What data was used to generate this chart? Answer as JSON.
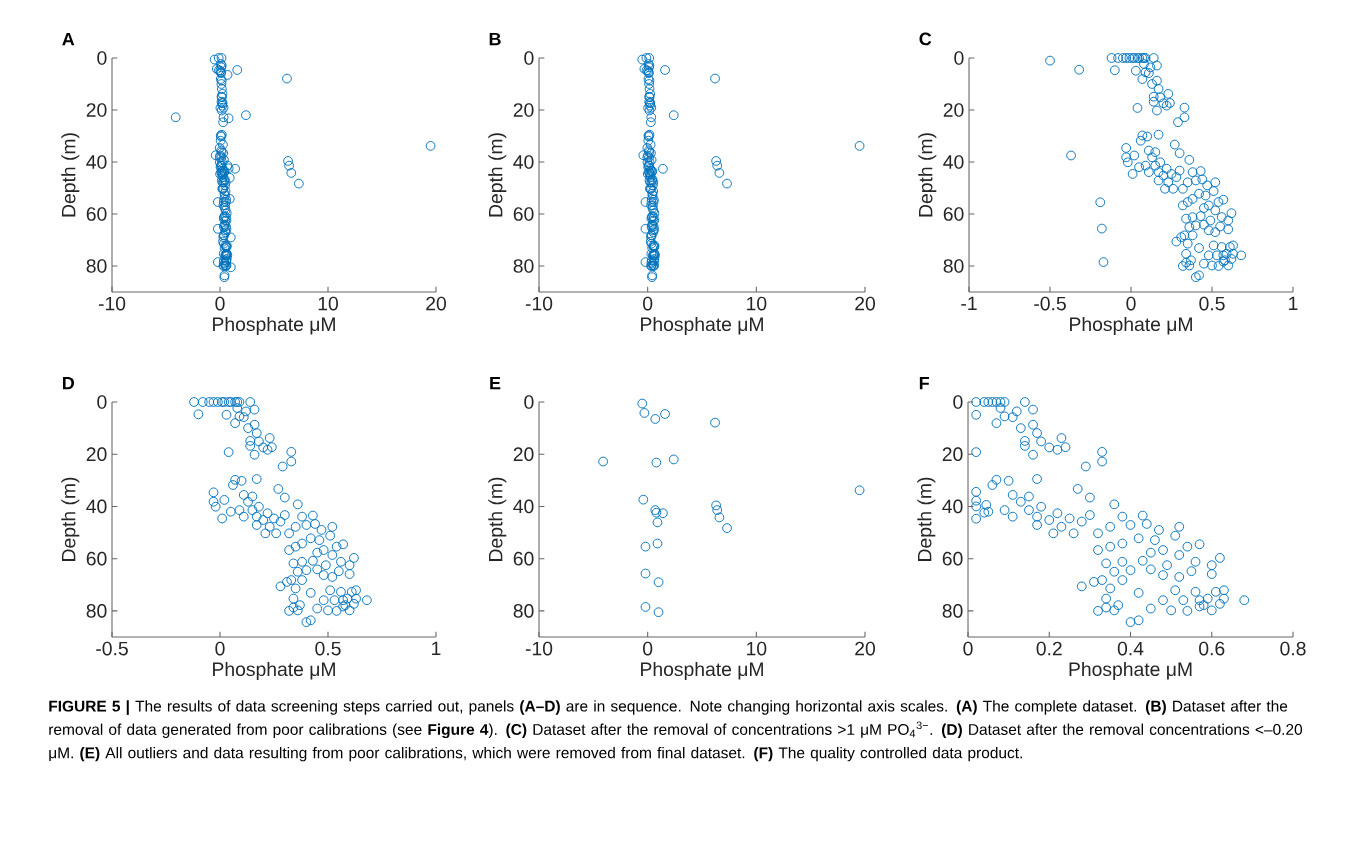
{
  "chart_data": [
    {
      "type": "scatter",
      "title": "A",
      "xlabel": "Phosphate μM",
      "ylabel": "Depth (m)",
      "color": "#0072bd",
      "marker": "circle",
      "xlim": [
        -10,
        20
      ],
      "ylim": [
        90,
        0
      ],
      "xticks": [
        -10,
        0,
        10,
        20
      ],
      "yticks": [
        0,
        20,
        40,
        60,
        80
      ],
      "x": [
        -0.12,
        0.14,
        -0.1,
        0.03,
        0.04,
        -0.03,
        -0.03,
        -0.02,
        0.02,
        0.01,
        0.16,
        0.08,
        0.09,
        0.12,
        0.07,
        0.11,
        0.13,
        0.16,
        0.17,
        0.14,
        0.14,
        0.18,
        0.16,
        0.2,
        0.23,
        0.22,
        0.24,
        0.33,
        0.33,
        0.29,
        0.17,
        0.07,
        0.1,
        0.06,
        0.05,
        0.11,
        0.13,
        0.15,
        0.27,
        0.3,
        0.36,
        0.09,
        0.11,
        0.15,
        0.17,
        0.18,
        0.2,
        0.22,
        0.23,
        0.25,
        0.28,
        0.3,
        0.17,
        0.21,
        0.26,
        0.32,
        0.35,
        0.38,
        0.43,
        0.4,
        0.44,
        0.47,
        0.52,
        0.51,
        0.46,
        0.42,
        0.38,
        0.57,
        0.54,
        0.48,
        0.45,
        0.35,
        0.32,
        0.34,
        0.38,
        0.43,
        0.52,
        0.56,
        0.62,
        0.6,
        0.6,
        0.55,
        0.52,
        0.48,
        0.49,
        0.45,
        0.4,
        0.36,
        0.33,
        0.28,
        0.31,
        0.38,
        0.42,
        0.35,
        0.34,
        0.32,
        0.34,
        0.36,
        0.37,
        0.4,
        0.42,
        0.45,
        0.48,
        0.5,
        0.51,
        0.53,
        0.54,
        0.56,
        0.57,
        0.58,
        0.59,
        0.6,
        0.61,
        0.62,
        0.63,
        0.63,
        0.68,
        0.57,
        -0.5,
        -0.3,
        1.6,
        0.7,
        6.2,
        -4.1,
        0.8,
        2.4,
        19.5,
        -0.4,
        6.3,
        6.4,
        6.6,
        7.3,
        0.7,
        0.8,
        1.4,
        0.9,
        0.9,
        -0.2,
        -0.2,
        1,
        -0.2,
        1
      ],
      "values": [
        0,
        0,
        4.7,
        4.9,
        19.2,
        34.6,
        38.2,
        40.1,
        37.5,
        44.6,
        2.9,
        2.3,
        5.5,
        3.6,
        8.1,
        5.8,
        10,
        8.7,
        11.9,
        14.9,
        16.8,
        15.1,
        20.2,
        17.4,
        13.8,
        18.3,
        17.3,
        19.1,
        22.8,
        24.7,
        29.5,
        29.8,
        30.2,
        31.8,
        42,
        35.6,
        38.2,
        36.2,
        33.3,
        36.6,
        39.2,
        41.4,
        43.9,
        41.4,
        43.9,
        40.1,
        45.2,
        42.6,
        47.8,
        44.6,
        45.8,
        43.3,
        47.1,
        50.3,
        50.3,
        50.3,
        47.8,
        43.9,
        43.5,
        47.1,
        46.7,
        49,
        47.8,
        51.2,
        52.9,
        52.2,
        54.2,
        54.5,
        55.4,
        56.7,
        57.7,
        55.4,
        56.7,
        61.8,
        61.2,
        60.8,
        58.6,
        61.2,
        59.7,
        62.5,
        65.9,
        64.8,
        67,
        66.3,
        62.5,
        64.1,
        64.4,
        65,
        68.2,
        70.6,
        68.9,
        68.2,
        73.1,
        71.4,
        75.3,
        80,
        78.7,
        79.8,
        77.8,
        84.3,
        83.6,
        79.1,
        75.9,
        79.8,
        72.1,
        75.9,
        80,
        72.7,
        75.9,
        77.8,
        75.3,
        79.8,
        72.7,
        77.3,
        72.1,
        75.3,
        75.9,
        78.3,
        0.6,
        4.2,
        4.6,
        6.5,
        7.9,
        22.8,
        23.2,
        22,
        33.8,
        37.4,
        39.6,
        41.4,
        44.2,
        48.3,
        41.4,
        42.4,
        42.6,
        46.1,
        54.2,
        55.4,
        65.7,
        69,
        78.5,
        80.5
      ]
    },
    {
      "type": "scatter",
      "title": "B",
      "xlabel": "Phosphate μM",
      "ylabel": "Depth (m)",
      "color": "#0072bd",
      "marker": "circle",
      "xlim": [
        -10,
        20
      ],
      "ylim": [
        90,
        0
      ],
      "xticks": [
        -10,
        0,
        10,
        20
      ],
      "yticks": [
        0,
        20,
        40,
        60,
        80
      ],
      "x": [
        -0.12,
        0.14,
        -0.1,
        0.03,
        0.04,
        -0.03,
        -0.03,
        -0.02,
        0.02,
        0.01,
        0.16,
        0.08,
        0.09,
        0.12,
        0.07,
        0.11,
        0.13,
        0.16,
        0.17,
        0.14,
        0.14,
        0.18,
        0.16,
        0.2,
        0.23,
        0.22,
        0.24,
        0.33,
        0.33,
        0.29,
        0.17,
        0.07,
        0.1,
        0.06,
        0.05,
        0.11,
        0.13,
        0.15,
        0.27,
        0.3,
        0.36,
        0.09,
        0.11,
        0.15,
        0.17,
        0.18,
        0.2,
        0.22,
        0.23,
        0.25,
        0.28,
        0.3,
        0.17,
        0.21,
        0.26,
        0.32,
        0.35,
        0.38,
        0.43,
        0.4,
        0.44,
        0.47,
        0.52,
        0.51,
        0.46,
        0.42,
        0.38,
        0.57,
        0.54,
        0.48,
        0.45,
        0.35,
        0.32,
        0.34,
        0.38,
        0.43,
        0.52,
        0.56,
        0.62,
        0.6,
        0.6,
        0.55,
        0.52,
        0.48,
        0.49,
        0.45,
        0.4,
        0.36,
        0.33,
        0.28,
        0.31,
        0.38,
        0.42,
        0.35,
        0.34,
        0.32,
        0.34,
        0.36,
        0.37,
        0.4,
        0.42,
        0.45,
        0.48,
        0.5,
        0.51,
        0.53,
        0.54,
        0.56,
        0.57,
        0.58,
        0.59,
        0.6,
        0.61,
        0.62,
        0.63,
        0.63,
        0.68,
        0.57,
        -0.5,
        -0.3,
        1.6,
        6.2,
        2.4,
        19.5,
        -0.4,
        6.3,
        6.4,
        6.6,
        7.3,
        1.4,
        -0.2,
        -0.2,
        -0.2
      ],
      "values": [
        0,
        0,
        4.7,
        4.9,
        19.2,
        34.6,
        38.2,
        40.1,
        37.5,
        44.6,
        2.9,
        2.3,
        5.5,
        3.6,
        8.1,
        5.8,
        10,
        8.7,
        11.9,
        14.9,
        16.8,
        15.1,
        20.2,
        17.4,
        13.8,
        18.3,
        17.3,
        19.1,
        22.8,
        24.7,
        29.5,
        29.8,
        30.2,
        31.8,
        42,
        35.6,
        38.2,
        36.2,
        33.3,
        36.6,
        39.2,
        41.4,
        43.9,
        41.4,
        43.9,
        40.1,
        45.2,
        42.6,
        47.8,
        44.6,
        45.8,
        43.3,
        47.1,
        50.3,
        50.3,
        50.3,
        47.8,
        43.9,
        43.5,
        47.1,
        46.7,
        49,
        47.8,
        51.2,
        52.9,
        52.2,
        54.2,
        54.5,
        55.4,
        56.7,
        57.7,
        55.4,
        56.7,
        61.8,
        61.2,
        60.8,
        58.6,
        61.2,
        59.7,
        62.5,
        65.9,
        64.8,
        67,
        66.3,
        62.5,
        64.1,
        64.4,
        65,
        68.2,
        70.6,
        68.9,
        68.2,
        73.1,
        71.4,
        75.3,
        80,
        78.7,
        79.8,
        77.8,
        84.3,
        83.6,
        79.1,
        75.9,
        79.8,
        72.1,
        75.9,
        80,
        72.7,
        75.9,
        77.8,
        75.3,
        79.8,
        72.7,
        77.3,
        72.1,
        75.3,
        75.9,
        78.3,
        0.6,
        4.2,
        4.6,
        7.9,
        22,
        33.8,
        37.4,
        39.6,
        41.4,
        44.2,
        48.3,
        42.6,
        55.4,
        65.7,
        78.5
      ]
    },
    {
      "type": "scatter",
      "title": "C",
      "xlabel": "Phosphate μM",
      "ylabel": "Depth (m)",
      "color": "#0072bd",
      "marker": "circle",
      "xlim": [
        -1,
        1
      ],
      "ylim": [
        90,
        0
      ],
      "xticks": [
        -1,
        -0.5,
        0,
        0.5,
        1
      ],
      "yticks": [
        0,
        20,
        40,
        60,
        80
      ],
      "x": [
        -0.5,
        -0.32,
        -0.37,
        -0.19,
        -0.18,
        -0.17,
        -0.12,
        -0.08,
        -0.05,
        -0.03,
        -0.01,
        0.01,
        0.02,
        0.04,
        0.05,
        0.07,
        0.08,
        0.09,
        0.14,
        -0.1,
        0.03,
        0.04,
        -0.03,
        -0.03,
        -0.02,
        0.02,
        0.01,
        0.16,
        0.08,
        0.09,
        0.12,
        0.07,
        0.11,
        0.13,
        0.16,
        0.17,
        0.14,
        0.14,
        0.18,
        0.16,
        0.2,
        0.23,
        0.22,
        0.24,
        0.33,
        0.33,
        0.29,
        0.17,
        0.07,
        0.1,
        0.06,
        0.05,
        0.11,
        0.13,
        0.15,
        0.27,
        0.3,
        0.36,
        0.09,
        0.11,
        0.15,
        0.17,
        0.18,
        0.2,
        0.22,
        0.23,
        0.25,
        0.28,
        0.3,
        0.17,
        0.21,
        0.26,
        0.32,
        0.35,
        0.38,
        0.43,
        0.4,
        0.44,
        0.47,
        0.52,
        0.51,
        0.46,
        0.42,
        0.38,
        0.57,
        0.54,
        0.48,
        0.45,
        0.35,
        0.32,
        0.34,
        0.38,
        0.43,
        0.52,
        0.56,
        0.62,
        0.6,
        0.6,
        0.55,
        0.52,
        0.48,
        0.49,
        0.45,
        0.4,
        0.36,
        0.33,
        0.28,
        0.31,
        0.38,
        0.42,
        0.35,
        0.34,
        0.32,
        0.34,
        0.36,
        0.37,
        0.4,
        0.42,
        0.45,
        0.48,
        0.5,
        0.51,
        0.53,
        0.54,
        0.56,
        0.57,
        0.58,
        0.59,
        0.6,
        0.61,
        0.62,
        0.63,
        0.63,
        0.68,
        0.57
      ],
      "values": [
        1,
        4.5,
        37.5,
        55.5,
        65.6,
        78.5,
        0,
        0,
        0,
        0,
        0,
        0,
        0,
        0,
        0,
        0,
        0,
        0,
        0,
        4.7,
        4.9,
        19.2,
        34.6,
        38.2,
        40.1,
        37.5,
        44.6,
        2.9,
        2.3,
        5.5,
        3.6,
        8.1,
        5.8,
        10,
        8.7,
        11.9,
        14.9,
        16.8,
        15.1,
        20.2,
        17.4,
        13.8,
        18.3,
        17.3,
        19.1,
        22.8,
        24.7,
        29.5,
        29.8,
        30.2,
        31.8,
        42,
        35.6,
        38.2,
        36.2,
        33.3,
        36.6,
        39.2,
        41.4,
        43.9,
        41.4,
        43.9,
        40.1,
        45.2,
        42.6,
        47.8,
        44.6,
        45.8,
        43.3,
        47.1,
        50.3,
        50.3,
        50.3,
        47.8,
        43.9,
        43.5,
        47.1,
        46.7,
        49,
        47.8,
        51.2,
        52.9,
        52.2,
        54.2,
        54.5,
        55.4,
        56.7,
        57.7,
        55.4,
        56.7,
        61.8,
        61.2,
        60.8,
        58.6,
        61.2,
        59.7,
        62.5,
        65.9,
        64.8,
        67,
        66.3,
        62.5,
        64.1,
        64.4,
        65,
        68.2,
        70.6,
        68.9,
        68.2,
        73.1,
        71.4,
        75.3,
        80,
        78.7,
        79.8,
        77.8,
        84.3,
        83.6,
        79.1,
        75.9,
        79.8,
        72.1,
        75.9,
        80,
        72.7,
        75.9,
        77.8,
        75.3,
        79.8,
        72.7,
        77.3,
        72.1,
        75.3,
        75.9,
        78.3
      ]
    },
    {
      "type": "scatter",
      "title": "D",
      "xlabel": "Phosphate μM",
      "ylabel": "Depth (m)",
      "color": "#0072bd",
      "marker": "circle",
      "xlim": [
        -0.5,
        1
      ],
      "ylim": [
        90,
        0
      ],
      "xticks": [
        -0.5,
        0,
        0.5,
        1
      ],
      "yticks": [
        0,
        20,
        40,
        60,
        80
      ],
      "x": [
        -0.12,
        -0.08,
        -0.05,
        -0.03,
        -0.01,
        0.01,
        0.02,
        0.04,
        0.05,
        0.07,
        0.08,
        0.09,
        0.14,
        -0.1,
        0.03,
        0.04,
        -0.03,
        -0.03,
        -0.02,
        0.02,
        0.01,
        0.16,
        0.08,
        0.09,
        0.12,
        0.07,
        0.11,
        0.13,
        0.16,
        0.17,
        0.14,
        0.14,
        0.18,
        0.16,
        0.2,
        0.23,
        0.22,
        0.24,
        0.33,
        0.33,
        0.29,
        0.17,
        0.07,
        0.1,
        0.06,
        0.05,
        0.11,
        0.13,
        0.15,
        0.27,
        0.3,
        0.36,
        0.09,
        0.11,
        0.15,
        0.17,
        0.18,
        0.2,
        0.22,
        0.23,
        0.25,
        0.28,
        0.3,
        0.17,
        0.21,
        0.26,
        0.32,
        0.35,
        0.38,
        0.43,
        0.4,
        0.44,
        0.47,
        0.52,
        0.51,
        0.46,
        0.42,
        0.38,
        0.57,
        0.54,
        0.48,
        0.45,
        0.35,
        0.32,
        0.34,
        0.38,
        0.43,
        0.52,
        0.56,
        0.62,
        0.6,
        0.6,
        0.55,
        0.52,
        0.48,
        0.49,
        0.45,
        0.4,
        0.36,
        0.33,
        0.28,
        0.31,
        0.38,
        0.42,
        0.35,
        0.34,
        0.32,
        0.34,
        0.36,
        0.37,
        0.4,
        0.42,
        0.45,
        0.48,
        0.5,
        0.51,
        0.53,
        0.54,
        0.56,
        0.57,
        0.58,
        0.59,
        0.6,
        0.61,
        0.62,
        0.63,
        0.63,
        0.68,
        0.57
      ],
      "values": [
        0,
        0,
        0,
        0,
        0,
        0,
        0,
        0,
        0,
        0,
        0,
        0,
        0,
        4.7,
        4.9,
        19.2,
        34.6,
        38.2,
        40.1,
        37.5,
        44.6,
        2.9,
        2.3,
        5.5,
        3.6,
        8.1,
        5.8,
        10,
        8.7,
        11.9,
        14.9,
        16.8,
        15.1,
        20.2,
        17.4,
        13.8,
        18.3,
        17.3,
        19.1,
        22.8,
        24.7,
        29.5,
        29.8,
        30.2,
        31.8,
        42,
        35.6,
        38.2,
        36.2,
        33.3,
        36.6,
        39.2,
        41.4,
        43.9,
        41.4,
        43.9,
        40.1,
        45.2,
        42.6,
        47.8,
        44.6,
        45.8,
        43.3,
        47.1,
        50.3,
        50.3,
        50.3,
        47.8,
        43.9,
        43.5,
        47.1,
        46.7,
        49,
        47.8,
        51.2,
        52.9,
        52.2,
        54.2,
        54.5,
        55.4,
        56.7,
        57.7,
        55.4,
        56.7,
        61.8,
        61.2,
        60.8,
        58.6,
        61.2,
        59.7,
        62.5,
        65.9,
        64.8,
        67,
        66.3,
        62.5,
        64.1,
        64.4,
        65,
        68.2,
        70.6,
        68.9,
        68.2,
        73.1,
        71.4,
        75.3,
        80,
        78.7,
        79.8,
        77.8,
        84.3,
        83.6,
        79.1,
        75.9,
        79.8,
        72.1,
        75.9,
        80,
        72.7,
        75.9,
        77.8,
        75.3,
        79.8,
        72.7,
        77.3,
        72.1,
        75.3,
        75.9,
        78.3
      ]
    },
    {
      "type": "scatter",
      "title": "E",
      "xlabel": "Phosphate μM",
      "ylabel": "Depth (m)",
      "color": "#0072bd",
      "marker": "circle",
      "xlim": [
        -10,
        20
      ],
      "ylim": [
        90,
        0
      ],
      "xticks": [
        -10,
        0,
        10,
        20
      ],
      "yticks": [
        0,
        20,
        40,
        60,
        80
      ],
      "x": [
        -0.5,
        -0.3,
        1.6,
        0.7,
        6.2,
        -4.1,
        0.8,
        2.4,
        19.5,
        -0.4,
        6.3,
        6.4,
        6.6,
        7.3,
        0.7,
        0.8,
        1.4,
        0.9,
        0.9,
        -0.2,
        -0.2,
        1,
        -0.2,
        1
      ],
      "values": [
        0.6,
        4.2,
        4.6,
        6.5,
        7.9,
        22.8,
        23.2,
        22,
        33.8,
        37.4,
        39.6,
        41.4,
        44.2,
        48.3,
        41.4,
        42.4,
        42.6,
        46.1,
        54.2,
        55.4,
        65.7,
        69,
        78.5,
        80.5
      ]
    },
    {
      "type": "scatter",
      "title": "F",
      "xlabel": "Phosphate μM",
      "ylabel": "Depth (m)",
      "color": "#0072bd",
      "marker": "circle",
      "xlim": [
        0,
        0.8
      ],
      "ylim": [
        90,
        0
      ],
      "xticks": [
        0,
        0.2,
        0.4,
        0.6,
        0.8
      ],
      "yticks": [
        0,
        20,
        40,
        60,
        80
      ],
      "x": [
        0.02,
        0.04,
        0.05,
        0.06,
        0.07,
        0.08,
        0.09,
        0.14,
        0.02,
        0.02,
        0.02,
        0.02,
        0.02,
        0.02,
        0.045,
        0.04,
        0.16,
        0.08,
        0.09,
        0.12,
        0.07,
        0.11,
        0.13,
        0.16,
        0.17,
        0.14,
        0.14,
        0.18,
        0.16,
        0.2,
        0.23,
        0.22,
        0.24,
        0.33,
        0.33,
        0.29,
        0.17,
        0.07,
        0.1,
        0.06,
        0.05,
        0.11,
        0.13,
        0.15,
        0.27,
        0.3,
        0.36,
        0.09,
        0.11,
        0.15,
        0.17,
        0.18,
        0.2,
        0.22,
        0.23,
        0.25,
        0.28,
        0.3,
        0.17,
        0.21,
        0.26,
        0.32,
        0.35,
        0.38,
        0.43,
        0.4,
        0.44,
        0.47,
        0.52,
        0.51,
        0.46,
        0.42,
        0.38,
        0.57,
        0.54,
        0.48,
        0.45,
        0.35,
        0.32,
        0.34,
        0.38,
        0.43,
        0.52,
        0.56,
        0.62,
        0.6,
        0.6,
        0.55,
        0.52,
        0.48,
        0.49,
        0.45,
        0.4,
        0.36,
        0.33,
        0.28,
        0.31,
        0.38,
        0.42,
        0.35,
        0.34,
        0.32,
        0.34,
        0.36,
        0.37,
        0.4,
        0.42,
        0.45,
        0.48,
        0.5,
        0.51,
        0.53,
        0.54,
        0.56,
        0.57,
        0.58,
        0.59,
        0.6,
        0.61,
        0.62,
        0.63,
        0.63,
        0.68,
        0.57
      ],
      "values": [
        0,
        0,
        0,
        0,
        0,
        0,
        0,
        0,
        4.9,
        19.2,
        34.4,
        37.8,
        40,
        44.7,
        39.4,
        42.4,
        2.9,
        2.3,
        5.5,
        3.6,
        8.1,
        5.8,
        10,
        8.7,
        11.9,
        14.9,
        16.8,
        15.1,
        20.2,
        17.4,
        13.8,
        18.3,
        17.3,
        19.1,
        22.8,
        24.7,
        29.5,
        29.8,
        30.2,
        31.8,
        42,
        35.6,
        38.2,
        36.2,
        33.3,
        36.6,
        39.2,
        41.4,
        43.9,
        41.4,
        43.9,
        40.1,
        45.2,
        42.6,
        47.8,
        44.6,
        45.8,
        43.3,
        47.1,
        50.3,
        50.3,
        50.3,
        47.8,
        43.9,
        43.5,
        47.1,
        46.7,
        49,
        47.8,
        51.2,
        52.9,
        52.2,
        54.2,
        54.5,
        55.4,
        56.7,
        57.7,
        55.4,
        56.7,
        61.8,
        61.2,
        60.8,
        58.6,
        61.2,
        59.7,
        62.5,
        65.9,
        64.8,
        67,
        66.3,
        62.5,
        64.1,
        64.4,
        65,
        68.2,
        70.6,
        68.9,
        68.2,
        73.1,
        71.4,
        75.3,
        80,
        78.7,
        79.8,
        77.8,
        84.3,
        83.6,
        79.1,
        75.9,
        79.8,
        72.1,
        75.9,
        80,
        72.7,
        75.9,
        77.8,
        75.3,
        79.8,
        72.7,
        77.3,
        72.1,
        75.3,
        75.9,
        78.3
      ]
    },
    {
      "type": "other",
      "annotations": [
        "**FIGURE 5 |** The results of data screening steps carried out, panels **(A–D)** are in sequence. Note changing horizontal axis scales. **(A)** The complete dataset. **(B)** Dataset after the removal of data generated from poor calibrations (see **Figure 4**). **(C)** Dataset after the removal of concentrations >1 μM PO$_{4}$$^{3−}$. **(D)** Dataset after the removal concentrations <–0.20 μM. **(E)** All outliers and data resulting from poor calibrations, which were removed from final dataset. **(F)** The quality controlled data product."
      ]
    }
  ]
}
